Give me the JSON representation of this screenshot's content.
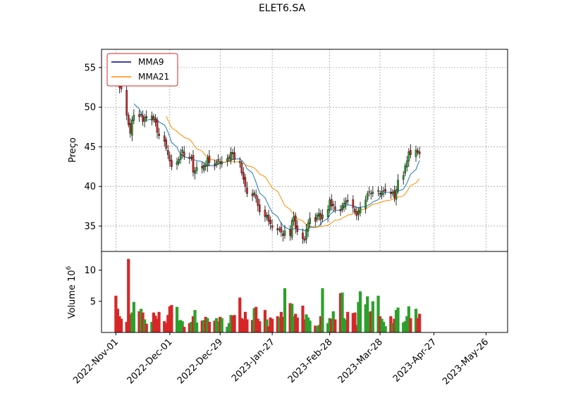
{
  "chart_data": {
    "type": "candlestick",
    "title": "ELET6.SA",
    "price_panel": {
      "ylabel": "Preço",
      "ylim": [
        31.8,
        57.3
      ],
      "yticks": [
        35,
        40,
        45,
        50,
        55
      ],
      "grid": true,
      "legend_position": "top-left",
      "legend": [
        {
          "name": "MMA9",
          "color": "#00008b"
        },
        {
          "name": "MMA21",
          "color": "#ff8c00"
        }
      ],
      "up_color": "#2ca02c",
      "down_color": "#d62728"
    },
    "volume_panel": {
      "ylabel": "Volume  10",
      "ylabel_exponent": "6",
      "ylim": [
        0,
        13
      ],
      "yticks": [
        5,
        10
      ]
    },
    "x": {
      "start": "2022-10-24",
      "end": "2023-06-07",
      "tick_labels": [
        "2022-Nov-01",
        "2022-Dec-01",
        "2022-Dec-29",
        "2023-Jan-27",
        "2023-Feb-28",
        "2023-Mar-28",
        "2023-Apr-27",
        "2023-May-26"
      ]
    },
    "close": [
      54.5,
      53.6,
      52.5,
      52.3,
      49.0,
      47.8,
      46.7,
      48.4,
      49.0,
      48.8,
      49.1,
      48.2,
      48.7,
      48.6,
      48.9,
      48.4,
      48.1,
      46.8,
      46.4,
      45.7,
      44.8,
      44.0,
      43.2,
      42.5,
      43.1,
      43.4,
      44.1,
      44.6,
      43.8,
      43.5,
      43.7,
      41.8,
      42.0,
      42.4,
      42.3,
      42.7,
      42.5,
      43.6,
      43.0,
      42.7,
      43.1,
      43.4,
      42.9,
      43.1,
      43.5,
      43.5,
      44.3,
      44.1,
      43.4,
      43.0,
      41.7,
      40.9,
      40.0,
      39.1,
      38.8,
      39.2,
      38.5,
      37.6,
      36.8,
      36.2,
      36.4,
      35.6,
      35.3,
      34.8,
      34.5,
      34.6,
      34.2,
      33.8,
      34.4,
      33.8,
      35.7,
      36.2,
      34.8,
      34.3,
      33.4,
      33.2,
      34.6,
      35.4,
      36.0,
      35.6,
      36.4,
      36.6,
      35.8,
      36.4,
      37.1,
      38.3,
      37.5,
      37.6,
      37.1,
      36.9,
      37.6,
      37.9,
      38.2,
      38.1,
      37.3,
      36.8,
      36.3,
      36.9,
      37.3,
      38.3,
      39.1,
      39.3,
      39.1,
      39.3,
      39.4,
      39.0,
      39.4,
      39.4,
      39.4,
      39.1,
      39.3,
      38.6,
      39.6,
      40.8,
      41.4,
      42.6,
      43.2,
      44.4,
      44.0,
      44.6,
      44.3,
      44.1
    ],
    "volume": [
      5.9,
      3.8,
      2.6,
      2.2,
      1.7,
      11.8,
      2.9,
      3.2,
      4.9,
      3.4,
      3.8,
      3.2,
      2.1,
      1.4,
      1.7,
      3.2,
      2.7,
      2.2,
      3.3,
      1.8,
      1.5,
      2.8,
      4.2,
      4.4,
      4.1,
      1.9,
      2.0,
      1.8,
      0.9,
      1.5,
      1.7,
      2.6,
      3.6,
      1.6,
      1.9,
      2.0,
      2.5,
      2.3,
      1.7,
      1.9,
      2.3,
      1.8,
      2.5,
      2.3,
      0.9,
      1.5,
      2.8,
      2.7,
      2.8,
      5.6,
      2.3,
      2.1,
      3.3,
      2.1,
      2.0,
      3.9,
      4.1,
      2.2,
      1.8,
      3.6,
      2.1,
      1.0,
      2.4,
      2.2,
      2.6,
      2.4,
      3.3,
      2.5,
      7.1,
      4.7,
      4.6,
      2.6,
      3.0,
      2.4,
      4.3,
      2.1,
      2.9,
      2.4,
      1.9,
      1.1,
      1.0,
      1.2,
      2.6,
      7.1,
      1.5,
      2.3,
      2.2,
      3.4,
      2.1,
      6.3,
      6.4,
      2.3,
      2.0,
      3.3,
      3.1,
      3.2,
      1.2,
      4.9,
      6.6,
      4.5,
      5.8,
      3.3,
      3.4,
      5.0,
      5.9,
      2.6,
      2.2,
      1.7,
      1.0,
      2.6,
      1.5,
      2.2,
      3.6,
      4.0,
      1.6,
      1.8,
      2.6,
      4.2,
      2.3,
      3.8,
      2.3,
      3.0
    ]
  }
}
